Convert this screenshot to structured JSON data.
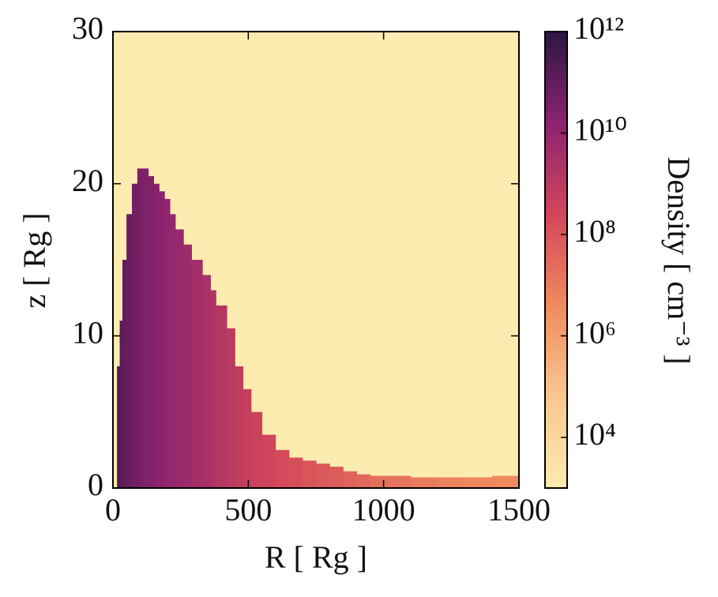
{
  "chart_data": {
    "type": "density_map",
    "xlabel": "R [ Rg ]",
    "ylabel": "z [ Rg ]",
    "colorbar_label": "Density [ cm⁻³ ]",
    "xlim": [
      0,
      1500
    ],
    "ylim": [
      0,
      30
    ],
    "xticks": [
      0,
      500,
      1000,
      1500
    ],
    "yticks": [
      0,
      10,
      20,
      30
    ],
    "clim": [
      1000,
      1000000000000
    ],
    "color_log": true,
    "cticks": [
      {
        "value": 10000,
        "label": "10⁴"
      },
      {
        "value": 1000000,
        "label": "10⁶"
      },
      {
        "value": 100000000,
        "label": "10⁸"
      },
      {
        "value": 10000000000,
        "label": "10¹⁰"
      },
      {
        "value": 1000000000000,
        "label": "10¹²"
      }
    ],
    "colormap": [
      "#fdebaf",
      "#f9c78f",
      "#f08a5e",
      "#d2465a",
      "#8c2370",
      "#2c1642"
    ],
    "edges": [
      15,
      25,
      35,
      50,
      70,
      90,
      110,
      130,
      150,
      170,
      190,
      210,
      230,
      260,
      290,
      330,
      360,
      380,
      420,
      450,
      480,
      510,
      550,
      600,
      650,
      700,
      750,
      800,
      850,
      900,
      950,
      1000,
      1100,
      1200,
      1300,
      1400,
      1500
    ],
    "heights": [
      8,
      11,
      15,
      18,
      20,
      21,
      21,
      20.5,
      20,
      19.5,
      19,
      18,
      17,
      16,
      15,
      14,
      13,
      12,
      10.5,
      8,
      6.5,
      5,
      3.5,
      2.5,
      2,
      1.8,
      1.6,
      1.4,
      1.1,
      0.9,
      0.8,
      0.8,
      0.7,
      0.7,
      0.7,
      0.8
    ],
    "density": [
      200000000000,
      150000000000,
      100000000000,
      70000000000,
      50000000000,
      40000000000,
      30000000000,
      25000000000,
      20000000000,
      15000000000,
      12000000000,
      10000000000,
      8000000000,
      6000000000,
      4000000000,
      3000000000,
      2000000000,
      1500000000,
      1000000000,
      700000000,
      500000000,
      400000000,
      300000000,
      200000000,
      150000000,
      100000000,
      80000000,
      60000000,
      40000000,
      30000000,
      20000000,
      15000000,
      10000000,
      7000000,
      5000000,
      4000000
    ]
  }
}
